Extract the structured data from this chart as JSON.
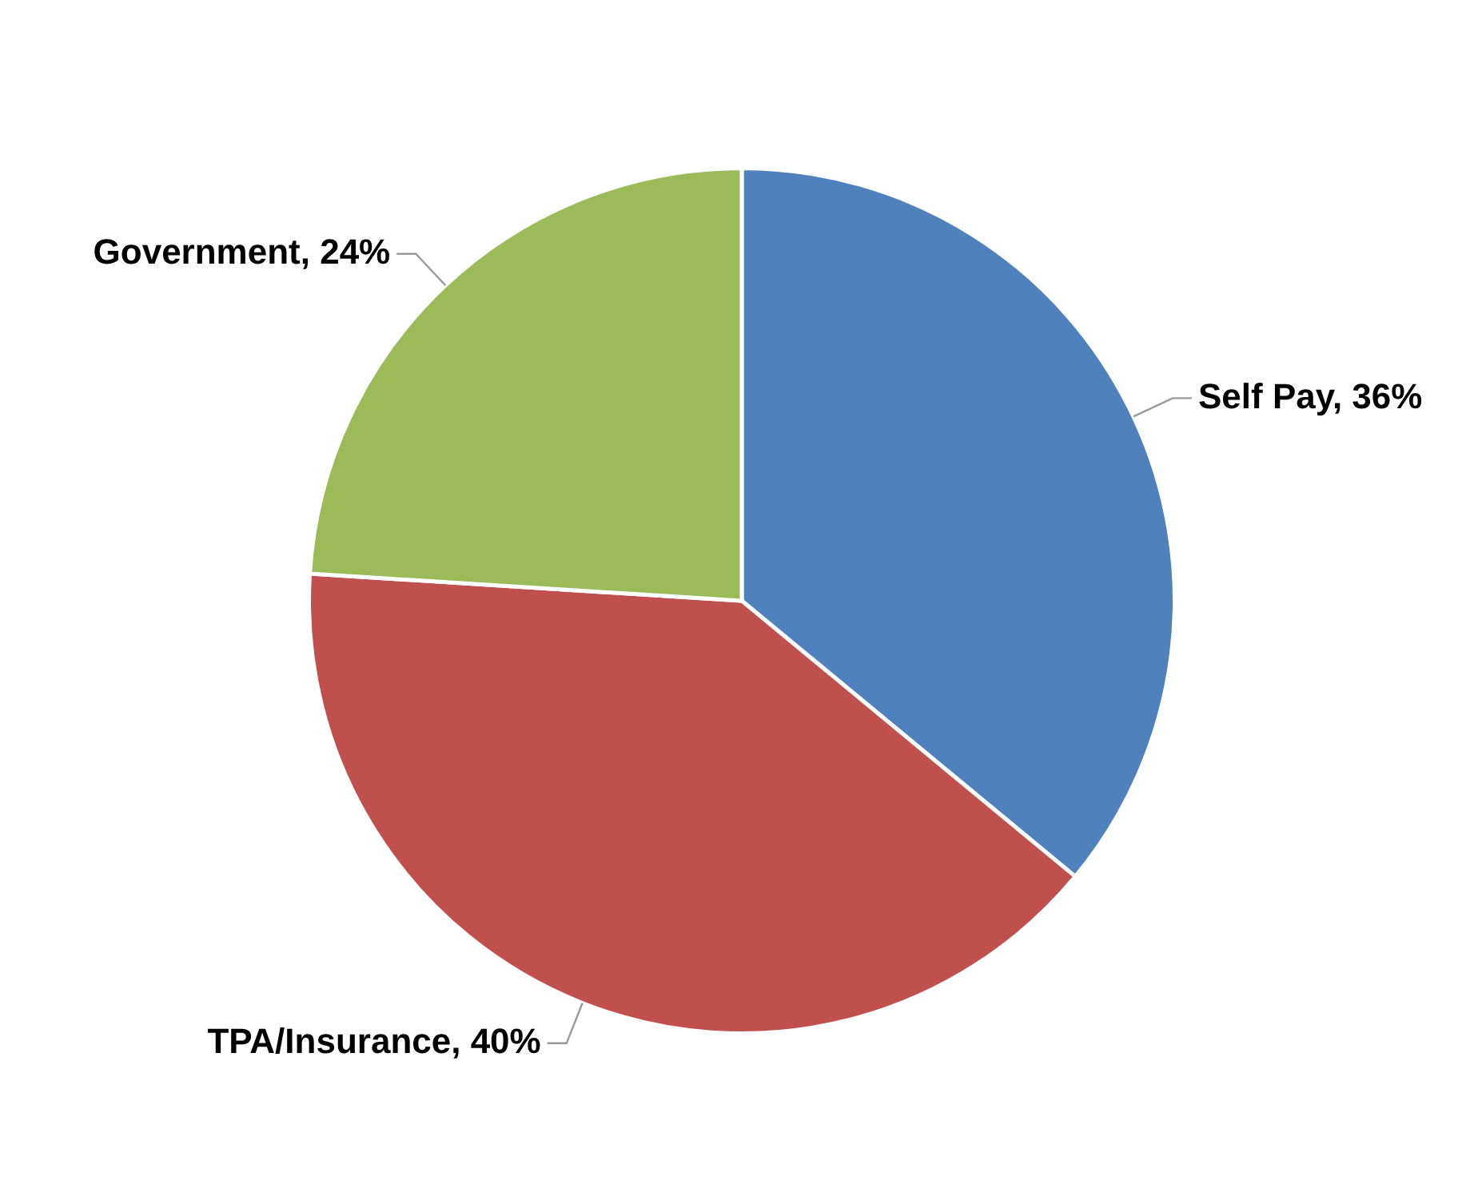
{
  "chart_data": {
    "type": "pie",
    "categories": [
      "Self Pay",
      "TPA/Insurance",
      "Government"
    ],
    "values": [
      36,
      40,
      24
    ],
    "value_labels": [
      "36%",
      "40%",
      "24%"
    ],
    "colors": [
      "#4f81bd",
      "#c0504d",
      "#9bbb59"
    ],
    "legend": false
  }
}
